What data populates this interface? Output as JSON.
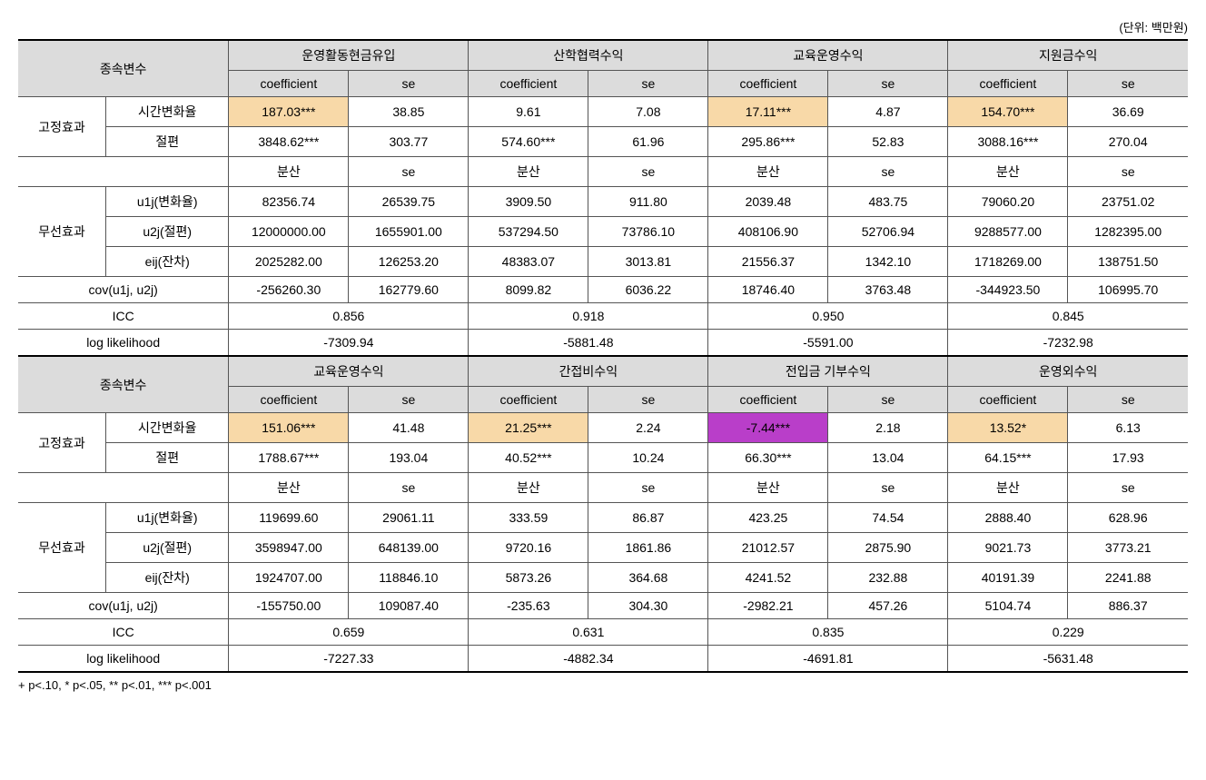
{
  "unit_label": "(단위: 백만원)",
  "footnote": "+ p<.10,  * p<.05,  ** p<.01,  *** p<.001",
  "labels": {
    "dep_var": "종속변수",
    "coef": "coefficient",
    "se": "se",
    "var": "분산",
    "fixed": "고정효과",
    "random": "무선효과",
    "time_rate": "시간변화율",
    "intercept": "절편",
    "u1j": "u1j(변화율)",
    "u2j": "u2j(절편)",
    "eij": "eij(잔차)",
    "cov": "cov(u1j, u2j)",
    "icc": "ICC",
    "loglik": "log likelihood"
  },
  "block1": {
    "headers": [
      "운영활동현금유입",
      "산학협력수익",
      "교육운영수익",
      "지원금수익"
    ],
    "time_rate": [
      {
        "coef": "187.03***",
        "se": "38.85",
        "hl": "orange"
      },
      {
        "coef": "9.61",
        "se": "7.08",
        "hl": ""
      },
      {
        "coef": "17.11***",
        "se": "4.87",
        "hl": "orange"
      },
      {
        "coef": "154.70***",
        "se": "36.69",
        "hl": "orange"
      }
    ],
    "intercept": [
      {
        "coef": "3848.62***",
        "se": "303.77"
      },
      {
        "coef": "574.60***",
        "se": "61.96"
      },
      {
        "coef": "295.86***",
        "se": "52.83"
      },
      {
        "coef": "3088.16***",
        "se": "270.04"
      }
    ],
    "u1j": [
      {
        "v": "82356.74",
        "s": "26539.75"
      },
      {
        "v": "3909.50",
        "s": "911.80"
      },
      {
        "v": "2039.48",
        "s": "483.75"
      },
      {
        "v": "79060.20",
        "s": "23751.02"
      }
    ],
    "u2j": [
      {
        "v": "12000000.00",
        "s": "1655901.00"
      },
      {
        "v": "537294.50",
        "s": "73786.10"
      },
      {
        "v": "408106.90",
        "s": "52706.94"
      },
      {
        "v": "9288577.00",
        "s": "1282395.00"
      }
    ],
    "eij": [
      {
        "v": "2025282.00",
        "s": "126253.20"
      },
      {
        "v": "48383.07",
        "s": "3013.81"
      },
      {
        "v": "21556.37",
        "s": "1342.10"
      },
      {
        "v": "1718269.00",
        "s": "138751.50"
      }
    ],
    "cov": [
      {
        "v": "-256260.30",
        "s": "162779.60"
      },
      {
        "v": "8099.82",
        "s": "6036.22"
      },
      {
        "v": "18746.40",
        "s": "3763.48"
      },
      {
        "v": "-344923.50",
        "s": "106995.70"
      }
    ],
    "icc": [
      "0.856",
      "0.918",
      "0.950",
      "0.845"
    ],
    "loglik": [
      "-7309.94",
      "-5881.48",
      "-5591.00",
      "-7232.98"
    ]
  },
  "block2": {
    "headers": [
      "교육운영수익",
      "간접비수익",
      "전입금 기부수익",
      "운영외수익"
    ],
    "time_rate": [
      {
        "coef": "151.06***",
        "se": "41.48",
        "hl": "orange"
      },
      {
        "coef": "21.25***",
        "se": "2.24",
        "hl": "orange"
      },
      {
        "coef": "-7.44***",
        "se": "2.18",
        "hl": "purple"
      },
      {
        "coef": "13.52*",
        "se": "6.13",
        "hl": "orange"
      }
    ],
    "intercept": [
      {
        "coef": "1788.67***",
        "se": "193.04"
      },
      {
        "coef": "40.52***",
        "se": "10.24"
      },
      {
        "coef": "66.30***",
        "se": "13.04"
      },
      {
        "coef": "64.15***",
        "se": "17.93"
      }
    ],
    "u1j": [
      {
        "v": "119699.60",
        "s": "29061.11"
      },
      {
        "v": "333.59",
        "s": "86.87"
      },
      {
        "v": "423.25",
        "s": "74.54"
      },
      {
        "v": "2888.40",
        "s": "628.96"
      }
    ],
    "u2j": [
      {
        "v": "3598947.00",
        "s": "648139.00"
      },
      {
        "v": "9720.16",
        "s": "1861.86"
      },
      {
        "v": "21012.57",
        "s": "2875.90"
      },
      {
        "v": "9021.73",
        "s": "3773.21"
      }
    ],
    "eij": [
      {
        "v": "1924707.00",
        "s": "118846.10"
      },
      {
        "v": "5873.26",
        "s": "364.68"
      },
      {
        "v": "4241.52",
        "s": "232.88"
      },
      {
        "v": "40191.39",
        "s": "2241.88"
      }
    ],
    "cov": [
      {
        "v": "-155750.00",
        "s": "109087.40"
      },
      {
        "v": "-235.63",
        "s": "304.30"
      },
      {
        "v": "-2982.21",
        "s": "457.26"
      },
      {
        "v": "5104.74",
        "s": "886.37"
      }
    ],
    "icc": [
      "0.659",
      "0.631",
      "0.835",
      "0.229"
    ],
    "loglik": [
      "-7227.33",
      "-4882.34",
      "-4691.81",
      "-5631.48"
    ]
  }
}
